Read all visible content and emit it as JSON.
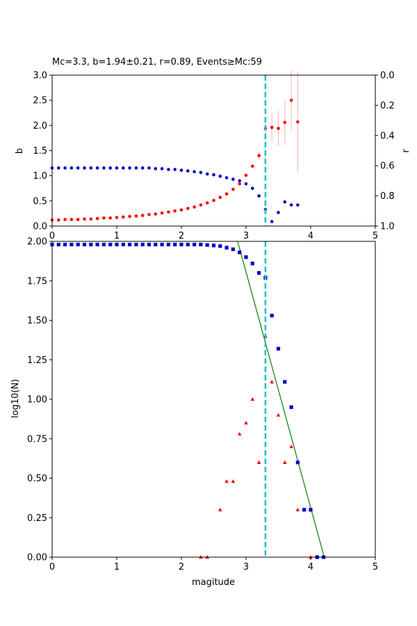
{
  "colors": {
    "b_series": "#ff0000",
    "r_series": "#0000cc",
    "mc_line": "#17becf",
    "fit_line": "#008000",
    "errorbar": "#ffb0b0",
    "cumulative": "#0000cc",
    "noncumulative": "#ff0000"
  },
  "chart_data": [
    {
      "type": "scatter",
      "title": "Mc=3.3, b=1.94±0.21, r=0.89, Events≥Mc:59",
      "xlabel": "",
      "ylabel": "b",
      "ylabel_right": "r",
      "xlim": [
        0,
        5
      ],
      "ylim": [
        0,
        3
      ],
      "ylim_right": [
        1,
        0
      ],
      "right_axis_inverted": true,
      "xticks": [
        "0",
        "1",
        "2",
        "3",
        "4",
        "5"
      ],
      "yticks": [
        "0.0",
        "0.5",
        "1.0",
        "1.5",
        "2.0",
        "2.5",
        "3.0"
      ],
      "yticks_right": [
        "0.0",
        "0.2",
        "0.4",
        "0.6",
        "0.8",
        "1.0"
      ],
      "grid": false,
      "mc": 3.3,
      "series": [
        {
          "marker": "circle",
          "axis": "left",
          "x": [
            0.0,
            0.1,
            0.2,
            0.3,
            0.4,
            0.5,
            0.6,
            0.7,
            0.8,
            0.9,
            1.0,
            1.1,
            1.2,
            1.3,
            1.4,
            1.5,
            1.6,
            1.7,
            1.8,
            1.9,
            2.0,
            2.1,
            2.2,
            2.3,
            2.4,
            2.5,
            2.6,
            2.7,
            2.8,
            2.9,
            3.0,
            3.1,
            3.2,
            3.3,
            3.4,
            3.5,
            3.6,
            3.7,
            3.8
          ],
          "y": [
            0.12,
            0.12,
            0.13,
            0.13,
            0.13,
            0.14,
            0.14,
            0.15,
            0.16,
            0.16,
            0.17,
            0.18,
            0.19,
            0.2,
            0.21,
            0.23,
            0.24,
            0.26,
            0.28,
            0.3,
            0.32,
            0.35,
            0.38,
            0.42,
            0.46,
            0.51,
            0.57,
            0.64,
            0.73,
            0.84,
            1.01,
            1.19,
            1.4,
            1.94,
            1.96,
            1.94,
            2.06,
            2.5,
            2.07
          ],
          "err": [
            0,
            0,
            0,
            0,
            0,
            0,
            0,
            0,
            0,
            0,
            0,
            0,
            0,
            0,
            0,
            0,
            0,
            0,
            0,
            0,
            0,
            0,
            0,
            0,
            0,
            0,
            0,
            0,
            0,
            0,
            0,
            0,
            0.08,
            0.22,
            0.28,
            0.35,
            0.45,
            0.6,
            1.0
          ]
        },
        {
          "marker": "circle",
          "axis": "right",
          "x": [
            0.0,
            0.1,
            0.2,
            0.3,
            0.4,
            0.5,
            0.6,
            0.7,
            0.8,
            0.9,
            1.0,
            1.1,
            1.2,
            1.3,
            1.4,
            1.5,
            1.6,
            1.7,
            1.8,
            1.9,
            2.0,
            2.1,
            2.2,
            2.3,
            2.4,
            2.5,
            2.6,
            2.7,
            2.8,
            2.9,
            3.0,
            3.1,
            3.2,
            3.3,
            3.4,
            3.5,
            3.6,
            3.7,
            3.8
          ],
          "y": [
            0.615,
            0.615,
            0.615,
            0.615,
            0.615,
            0.615,
            0.615,
            0.615,
            0.615,
            0.615,
            0.615,
            0.615,
            0.615,
            0.615,
            0.615,
            0.615,
            0.62,
            0.62,
            0.625,
            0.625,
            0.63,
            0.635,
            0.64,
            0.645,
            0.655,
            0.66,
            0.67,
            0.68,
            0.69,
            0.7,
            0.72,
            0.75,
            0.8,
            0.89,
            0.97,
            0.91,
            0.84,
            0.86,
            0.86
          ]
        }
      ]
    },
    {
      "type": "scatter",
      "title": "",
      "xlabel": "magitude",
      "ylabel": "log10(N)",
      "xlim": [
        0,
        5
      ],
      "ylim": [
        0,
        2
      ],
      "xticks": [
        "0",
        "1",
        "2",
        "3",
        "4",
        "5"
      ],
      "yticks": [
        "0.00",
        "0.25",
        "0.50",
        "0.75",
        "1.00",
        "1.25",
        "1.50",
        "1.75",
        "2.00"
      ],
      "grid": false,
      "mc": 3.3,
      "fit_line": {
        "x": [
          2.87,
          4.21
        ],
        "y": [
          2.0,
          0.0
        ]
      },
      "series": [
        {
          "marker": "square",
          "x": [
            0.0,
            0.1,
            0.2,
            0.3,
            0.4,
            0.5,
            0.6,
            0.7,
            0.8,
            0.9,
            1.0,
            1.1,
            1.2,
            1.3,
            1.4,
            1.5,
            1.6,
            1.7,
            1.8,
            1.9,
            2.0,
            2.1,
            2.2,
            2.3,
            2.4,
            2.5,
            2.6,
            2.7,
            2.8,
            2.9,
            3.0,
            3.1,
            3.2,
            3.3,
            3.4,
            3.5,
            3.6,
            3.7,
            3.8,
            3.9,
            4.0,
            4.1,
            4.2
          ],
          "y": [
            1.98,
            1.98,
            1.98,
            1.98,
            1.98,
            1.98,
            1.98,
            1.98,
            1.98,
            1.98,
            1.98,
            1.98,
            1.98,
            1.98,
            1.98,
            1.98,
            1.98,
            1.98,
            1.98,
            1.98,
            1.98,
            1.98,
            1.98,
            1.98,
            1.977,
            1.974,
            1.97,
            1.96,
            1.95,
            1.93,
            1.9,
            1.86,
            1.8,
            1.77,
            1.53,
            1.32,
            1.11,
            0.95,
            0.6,
            0.3,
            0.3,
            0.0,
            0.0
          ]
        },
        {
          "marker": "triangle",
          "x": [
            2.3,
            2.4,
            2.6,
            2.7,
            2.8,
            2.9,
            3.0,
            3.1,
            3.2,
            3.3,
            3.4,
            3.5,
            3.6,
            3.7,
            3.8,
            4.0
          ],
          "y": [
            0.0,
            0.0,
            0.3,
            0.48,
            0.48,
            0.78,
            0.85,
            1.0,
            0.6,
            1.4,
            1.11,
            0.9,
            0.6,
            0.7,
            0.3,
            0.0
          ]
        }
      ]
    }
  ]
}
